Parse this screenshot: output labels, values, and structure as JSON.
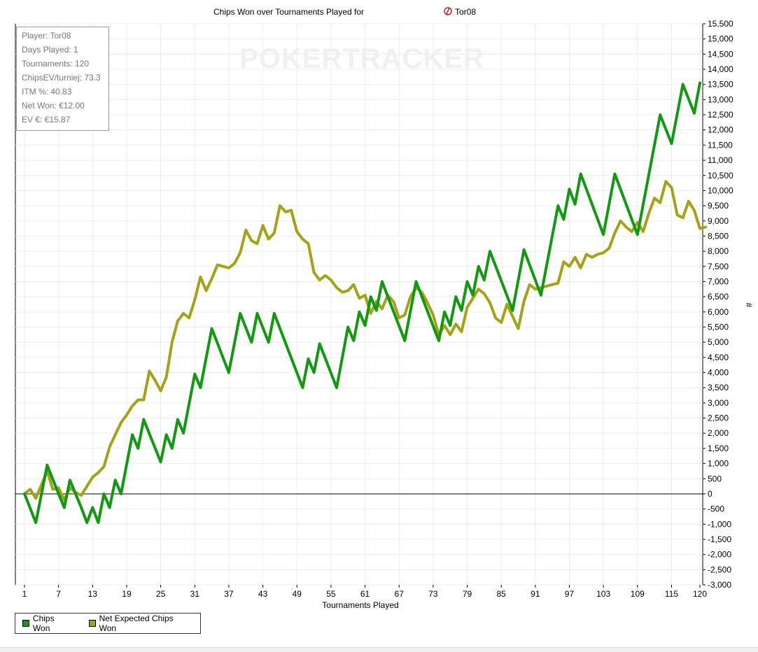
{
  "chart_data": {
    "type": "line",
    "title": "Chips Won over Tournaments Played for",
    "player_name": "Tor08",
    "xlabel": "Tournaments Played",
    "ylabel": "#",
    "xlim": [
      1,
      120
    ],
    "ylim": [
      -3000,
      15500
    ],
    "xticks": [
      1,
      7,
      13,
      19,
      25,
      31,
      37,
      43,
      49,
      55,
      61,
      67,
      73,
      79,
      85,
      91,
      97,
      103,
      109,
      115,
      120
    ],
    "yticks": [
      -3000,
      -2500,
      -2000,
      -1500,
      -1000,
      -500,
      0,
      500,
      1000,
      1500,
      2000,
      2500,
      3000,
      3500,
      4000,
      4500,
      5000,
      5500,
      6000,
      6500,
      7000,
      7500,
      8000,
      8500,
      9000,
      9500,
      10000,
      10500,
      11000,
      11500,
      12000,
      12500,
      13000,
      13500,
      14000,
      14500,
      15000,
      15500
    ],
    "ytick_labels": [
      "-3,000",
      "-2,500",
      "-2,000",
      "-1,500",
      "-1,000",
      "-500",
      "0",
      "500",
      "1,000",
      "1,500",
      "2,000",
      "2,500",
      "3,000",
      "3,500",
      "4,000",
      "4,500",
      "5,000",
      "5,500",
      "6,000",
      "6,500",
      "7,000",
      "7,500",
      "8,000",
      "8,500",
      "9,000",
      "9,500",
      "10,000",
      "10,500",
      "11,000",
      "11,500",
      "12,000",
      "12,500",
      "13,000",
      "13,500",
      "14,000",
      "14,500",
      "15,000",
      "15,500"
    ],
    "grid": true,
    "legend_position": "bottom-left",
    "watermark": "POKERTRACKER",
    "series": [
      {
        "name": "Chips Won",
        "color": "#119911",
        "points": [
          [
            1,
            0
          ],
          [
            3,
            -950
          ],
          [
            5,
            950
          ],
          [
            7,
            0
          ],
          [
            8,
            -450
          ],
          [
            9,
            450
          ],
          [
            11,
            -450
          ],
          [
            12,
            -950
          ],
          [
            13,
            -450
          ],
          [
            14,
            -950
          ],
          [
            15,
            0
          ],
          [
            16,
            -450
          ],
          [
            17,
            450
          ],
          [
            18,
            0
          ],
          [
            20,
            1950
          ],
          [
            21,
            1500
          ],
          [
            22,
            2450
          ],
          [
            25,
            1050
          ],
          [
            26,
            1950
          ],
          [
            27,
            1500
          ],
          [
            28,
            2450
          ],
          [
            29,
            2000
          ],
          [
            31,
            3950
          ],
          [
            32,
            3500
          ],
          [
            34,
            5450
          ],
          [
            37,
            4000
          ],
          [
            39,
            5950
          ],
          [
            41,
            5000
          ],
          [
            42,
            5950
          ],
          [
            44,
            5000
          ],
          [
            45,
            5950
          ],
          [
            50,
            3500
          ],
          [
            51,
            4450
          ],
          [
            52,
            4000
          ],
          [
            53,
            4950
          ],
          [
            56,
            3500
          ],
          [
            58,
            5500
          ],
          [
            59,
            5050
          ],
          [
            60,
            6000
          ],
          [
            61,
            5550
          ],
          [
            62,
            6500
          ],
          [
            63,
            6050
          ],
          [
            64,
            7000
          ],
          [
            68,
            5050
          ],
          [
            70,
            7000
          ],
          [
            74,
            5050
          ],
          [
            75,
            6000
          ],
          [
            76,
            5550
          ],
          [
            77,
            6500
          ],
          [
            78,
            6050
          ],
          [
            79,
            7000
          ],
          [
            80,
            6550
          ],
          [
            81,
            7500
          ],
          [
            82,
            7050
          ],
          [
            83,
            8000
          ],
          [
            87,
            6050
          ],
          [
            89,
            8050
          ],
          [
            92,
            6550
          ],
          [
            95,
            9500
          ],
          [
            96,
            9050
          ],
          [
            97,
            10050
          ],
          [
            98,
            9550
          ],
          [
            99,
            10550
          ],
          [
            103,
            8550
          ],
          [
            105,
            10550
          ],
          [
            109,
            8550
          ],
          [
            113,
            12500
          ],
          [
            115,
            11550
          ],
          [
            117,
            13500
          ],
          [
            119,
            12550
          ],
          [
            120,
            13550
          ]
        ]
      },
      {
        "name": "Net Expected Chips Won",
        "color": "#a3a317",
        "points": [
          [
            1,
            0
          ],
          [
            2,
            150
          ],
          [
            3,
            -150
          ],
          [
            4,
            300
          ],
          [
            5,
            750
          ],
          [
            6,
            150
          ],
          [
            7,
            200
          ],
          [
            8,
            -200
          ],
          [
            9,
            200
          ],
          [
            10,
            50
          ],
          [
            11,
            -50
          ],
          [
            12,
            250
          ],
          [
            13,
            550
          ],
          [
            14,
            700
          ],
          [
            15,
            900
          ],
          [
            16,
            1550
          ],
          [
            17,
            1950
          ],
          [
            18,
            2350
          ],
          [
            19,
            2600
          ],
          [
            20,
            2900
          ],
          [
            21,
            3100
          ],
          [
            22,
            3100
          ],
          [
            23,
            4050
          ],
          [
            24,
            3750
          ],
          [
            25,
            3400
          ],
          [
            26,
            3850
          ],
          [
            27,
            5000
          ],
          [
            28,
            5700
          ],
          [
            29,
            5950
          ],
          [
            30,
            5800
          ],
          [
            31,
            6400
          ],
          [
            32,
            7150
          ],
          [
            33,
            6700
          ],
          [
            34,
            7100
          ],
          [
            35,
            7550
          ],
          [
            36,
            7500
          ],
          [
            37,
            7450
          ],
          [
            38,
            7600
          ],
          [
            39,
            7950
          ],
          [
            40,
            8700
          ],
          [
            41,
            8350
          ],
          [
            42,
            8250
          ],
          [
            43,
            8850
          ],
          [
            44,
            8400
          ],
          [
            45,
            8600
          ],
          [
            46,
            9500
          ],
          [
            47,
            9300
          ],
          [
            48,
            9350
          ],
          [
            49,
            8650
          ],
          [
            50,
            8400
          ],
          [
            51,
            8250
          ],
          [
            52,
            7300
          ],
          [
            53,
            7050
          ],
          [
            54,
            7200
          ],
          [
            55,
            7050
          ],
          [
            56,
            6800
          ],
          [
            57,
            6650
          ],
          [
            58,
            6700
          ],
          [
            59,
            6900
          ],
          [
            60,
            6450
          ],
          [
            61,
            6550
          ],
          [
            62,
            5950
          ],
          [
            63,
            6350
          ],
          [
            64,
            6100
          ],
          [
            65,
            6550
          ],
          [
            66,
            6350
          ],
          [
            67,
            5800
          ],
          [
            68,
            5900
          ],
          [
            69,
            6500
          ],
          [
            70,
            6800
          ],
          [
            71,
            6650
          ],
          [
            72,
            6300
          ],
          [
            73,
            5900
          ],
          [
            74,
            5250
          ],
          [
            75,
            5550
          ],
          [
            76,
            5250
          ],
          [
            77,
            5600
          ],
          [
            78,
            5350
          ],
          [
            79,
            6150
          ],
          [
            80,
            6450
          ],
          [
            81,
            6750
          ],
          [
            82,
            6600
          ],
          [
            83,
            6300
          ],
          [
            84,
            5800
          ],
          [
            85,
            5650
          ],
          [
            86,
            6250
          ],
          [
            87,
            5850
          ],
          [
            88,
            5450
          ],
          [
            89,
            6350
          ],
          [
            90,
            6900
          ],
          [
            91,
            6750
          ],
          [
            92,
            6800
          ],
          [
            93,
            6850
          ],
          [
            94,
            6900
          ],
          [
            95,
            6950
          ],
          [
            96,
            7650
          ],
          [
            97,
            7500
          ],
          [
            98,
            7800
          ],
          [
            99,
            7450
          ],
          [
            100,
            7900
          ],
          [
            101,
            7800
          ],
          [
            102,
            7900
          ],
          [
            103,
            7950
          ],
          [
            104,
            8100
          ],
          [
            105,
            8600
          ],
          [
            106,
            9000
          ],
          [
            107,
            8800
          ],
          [
            108,
            8650
          ],
          [
            109,
            8950
          ],
          [
            110,
            8650
          ],
          [
            111,
            9250
          ],
          [
            112,
            9750
          ],
          [
            113,
            9600
          ],
          [
            114,
            10300
          ],
          [
            115,
            10100
          ],
          [
            116,
            9200
          ],
          [
            117,
            9100
          ],
          [
            118,
            9650
          ],
          [
            119,
            9350
          ],
          [
            120,
            8750
          ],
          [
            121,
            8800
          ]
        ]
      }
    ]
  },
  "stats": {
    "player": "Player: Tor08",
    "days_played": "Days Played: 1",
    "tournaments": "Tournaments: 120",
    "chips_ev": "ChipsEV/turniej: 73.3",
    "itm": "ITM %: 40.83",
    "net_won": "Net Won: €12.00",
    "ev": "EV €: €15.87"
  },
  "legend": {
    "chips_won": "Chips Won",
    "net_expected": "Net Expected Chips Won"
  }
}
